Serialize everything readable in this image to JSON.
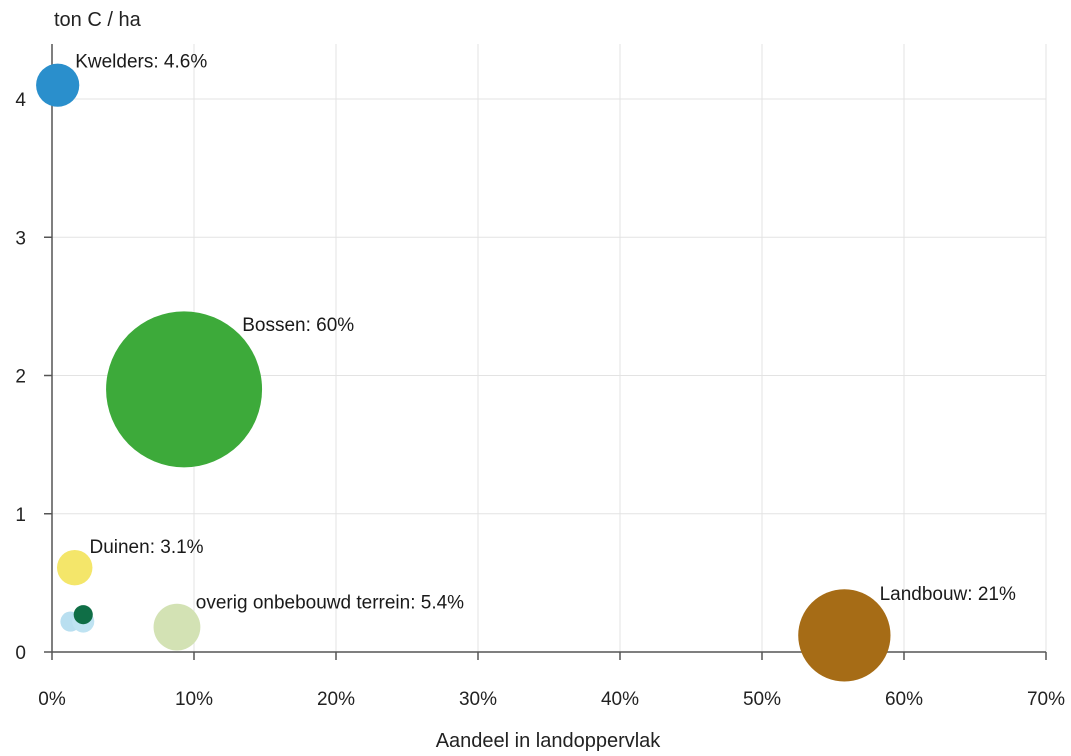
{
  "chart_data": {
    "type": "scatter",
    "subtype": "bubble",
    "title": "",
    "xlabel": "Aandeel in landoppervlak",
    "ylabel": "ton C / ha",
    "xlim": [
      0,
      70
    ],
    "ylim": [
      0,
      4.4
    ],
    "x_ticks": [
      0,
      10,
      20,
      30,
      40,
      50,
      60,
      70
    ],
    "x_tick_labels": [
      "0%",
      "10%",
      "20%",
      "30%",
      "40%",
      "50%",
      "60%",
      "70%"
    ],
    "y_ticks": [
      0,
      1,
      2,
      3,
      4
    ],
    "y_tick_labels": [
      "0",
      "1",
      "2",
      "3",
      "4"
    ],
    "grid": true,
    "points": [
      {
        "label": "Kwelders: 4.6%",
        "x": 0.4,
        "y": 4.1,
        "share": 4.6,
        "color": "#2a8fcc"
      },
      {
        "label": "Bossen: 60%",
        "x": 9.3,
        "y": 1.9,
        "share": 60,
        "color": "#3daa3a"
      },
      {
        "label": "Duinen: 3.1%",
        "x": 1.6,
        "y": 0.61,
        "share": 3.1,
        "color": "#f4e66a"
      },
      {
        "label": "overig onbebouwd terrein: 5.4%",
        "x": 8.8,
        "y": 0.18,
        "share": 5.4,
        "color": "#d3e2b4"
      },
      {
        "label": "Landbouw: 21%",
        "x": 55.8,
        "y": 0.12,
        "share": 21,
        "color": "#a66c16"
      },
      {
        "label": "",
        "x": 1.3,
        "y": 0.22,
        "share": 1.0,
        "color": "#b9dff0"
      },
      {
        "label": "",
        "x": 2.2,
        "y": 0.22,
        "share": 1.2,
        "color": "#bfe3f2"
      },
      {
        "label": "",
        "x": 2.2,
        "y": 0.27,
        "share": 0.9,
        "color": "#0f6e46"
      }
    ]
  }
}
